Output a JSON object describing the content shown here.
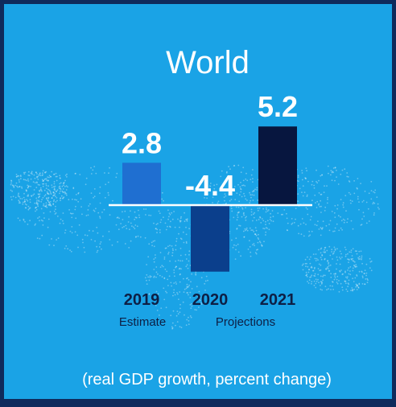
{
  "colors": {
    "background": "#1aa3e6",
    "frame": "#0f2a5c",
    "text_light": "#ffffff",
    "text_dark": "#0d1f45",
    "axis": "#ffffff"
  },
  "chart_data": {
    "type": "bar",
    "title": "World",
    "subtitle": "(real GDP growth, percent change)",
    "categories": [
      "2019",
      "2020",
      "2021"
    ],
    "values": [
      2.8,
      -4.4,
      5.2
    ],
    "value_labels": [
      "2.8",
      "-4.4",
      "5.2"
    ],
    "category_notes": [
      "Estimate",
      "Projections",
      ""
    ],
    "bar_colors": [
      "#1f6fd1",
      "#0b3f8c",
      "#07163f"
    ],
    "ylim": [
      -5,
      6
    ],
    "grid": false,
    "legend": "none"
  }
}
